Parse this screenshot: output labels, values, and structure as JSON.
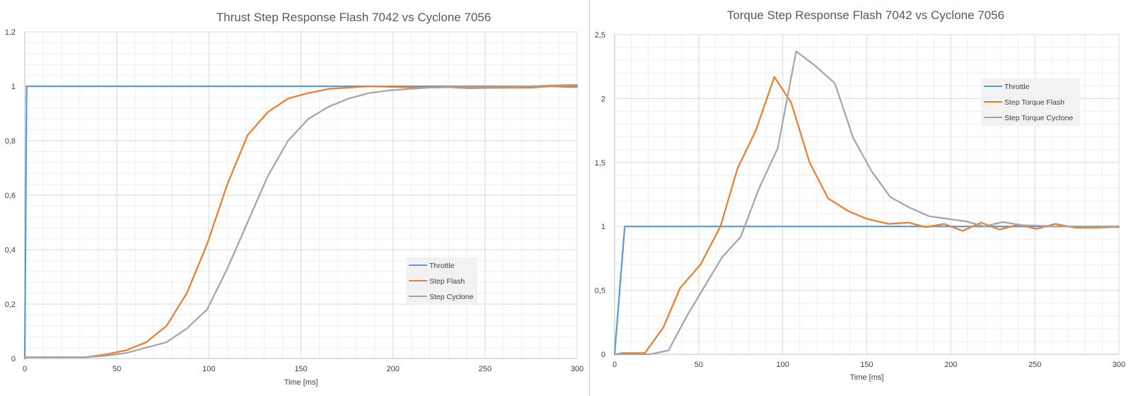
{
  "chart_data": [
    {
      "type": "line",
      "title": "Thrust Step Response Flash 7042 vs Cyclone 7056",
      "xlabel": "Time [ms]",
      "ylabel": "",
      "xlim": [
        0,
        300
      ],
      "ylim": [
        0,
        1.2
      ],
      "xticks": [
        0,
        50,
        100,
        150,
        200,
        250,
        300
      ],
      "yticks": [
        0,
        0.2,
        0.4,
        0.6,
        0.8,
        1,
        1.2
      ],
      "ytick_labels": [
        "0",
        "0,2",
        "0,4",
        "0,6",
        "0,8",
        "1",
        "1,2"
      ],
      "xtick_labels": [
        "0",
        "50",
        "100",
        "150",
        "200",
        "250",
        "300"
      ],
      "grid": true,
      "legend_position": "lower-right",
      "series": [
        {
          "name": "Throttle",
          "color": "#5B9BD5",
          "x": [
            0,
            1,
            300
          ],
          "y": [
            0,
            1,
            1
          ]
        },
        {
          "name": "Step Flash",
          "color": "#ED7D31",
          "x": [
            0,
            11,
            22,
            33,
            44,
            55,
            66,
            77,
            88,
            99,
            110,
            121,
            132,
            143,
            154,
            165,
            176,
            187,
            198,
            209,
            220,
            231,
            242,
            253,
            264,
            275,
            286,
            297,
            300
          ],
          "y": [
            0.005,
            0.005,
            0.005,
            0.005,
            0.015,
            0.03,
            0.06,
            0.12,
            0.24,
            0.42,
            0.64,
            0.82,
            0.905,
            0.955,
            0.975,
            0.99,
            0.995,
            1.0,
            0.998,
            0.996,
            0.995,
            0.997,
            0.993,
            0.994,
            0.995,
            0.995,
            1.0,
            0.997,
            0.998
          ]
        },
        {
          "name": "Step Cyclone",
          "color": "#A5A5A5",
          "x": [
            0,
            11,
            22,
            33,
            44,
            55,
            66,
            77,
            88,
            99,
            110,
            121,
            132,
            143,
            154,
            165,
            176,
            187,
            198,
            209,
            220,
            231,
            242,
            253,
            264,
            275,
            286,
            297,
            300
          ],
          "y": [
            0.005,
            0.005,
            0.005,
            0.005,
            0.01,
            0.02,
            0.04,
            0.06,
            0.11,
            0.18,
            0.33,
            0.5,
            0.67,
            0.8,
            0.88,
            0.925,
            0.955,
            0.975,
            0.985,
            0.99,
            0.995,
            0.998,
            0.997,
            0.997,
            0.998,
            1.0,
            1.003,
            1.005,
            1.005
          ]
        }
      ]
    },
    {
      "type": "line",
      "title": "Torque Step Response Flash 7042 vs Cyclone 7056",
      "xlabel": "Time [ms]",
      "ylabel": "",
      "xlim": [
        0,
        300
      ],
      "ylim": [
        0,
        2.5
      ],
      "xticks": [
        0,
        50,
        100,
        150,
        200,
        250,
        300
      ],
      "yticks": [
        0,
        0.5,
        1,
        1.5,
        2,
        2.5
      ],
      "ytick_labels": [
        "0",
        "0,5",
        "1",
        "1,5",
        "2",
        "2,5"
      ],
      "xtick_labels": [
        "0",
        "50",
        "100",
        "150",
        "200",
        "250",
        "300"
      ],
      "grid": true,
      "legend_position": "top-right",
      "series": [
        {
          "name": "Throttle",
          "color": "#5B9BD5",
          "x": [
            0,
            6,
            300
          ],
          "y": [
            0,
            1,
            1
          ]
        },
        {
          "name": "Step Torque Flash",
          "color": "#ED7D31",
          "x": [
            0,
            5,
            18,
            29,
            39,
            51,
            63,
            73,
            84,
            95,
            105,
            116,
            127,
            139,
            150,
            163,
            175,
            185,
            196,
            207,
            218,
            229,
            240,
            251,
            262,
            274,
            285,
            296,
            300
          ],
          "y": [
            0,
            0.01,
            0.01,
            0.21,
            0.52,
            0.7,
            1.0,
            1.45,
            1.75,
            2.17,
            1.97,
            1.5,
            1.22,
            1.12,
            1.06,
            1.02,
            1.03,
            0.995,
            1.02,
            0.965,
            1.03,
            0.975,
            1.015,
            0.98,
            1.02,
            0.99,
            0.99,
            0.995,
            0.995
          ]
        },
        {
          "name": "Step Torque Cyclone",
          "color": "#A5A5A5",
          "x": [
            0,
            10,
            21,
            32,
            43,
            53,
            64,
            75,
            86,
            97,
            108,
            119,
            131,
            142,
            153,
            164,
            175,
            187,
            198,
            209,
            220,
            231,
            242,
            254,
            265,
            276,
            287,
            298,
            300
          ],
          "y": [
            0,
            0,
            0,
            0.03,
            0.3,
            0.52,
            0.76,
            0.92,
            1.3,
            1.61,
            2.37,
            2.26,
            2.12,
            1.69,
            1.43,
            1.23,
            1.15,
            1.08,
            1.06,
            1.04,
            1.0,
            1.035,
            1.01,
            1.005,
            1.0,
            1.0,
            1.0,
            1.0,
            1.0
          ]
        }
      ]
    }
  ]
}
